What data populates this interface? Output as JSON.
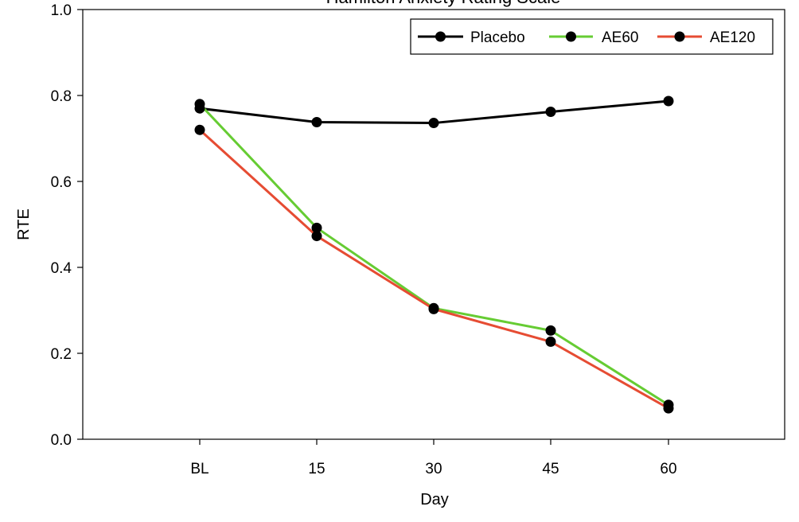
{
  "chart_data": {
    "type": "line",
    "title": "Hamilton Anxiety Rating Scale",
    "xlabel": "Day",
    "ylabel": "RTE",
    "categories": [
      "BL",
      "15",
      "30",
      "45",
      "60"
    ],
    "ylim": [
      0,
      1.0
    ],
    "yticks": [
      "0.0",
      "0.2",
      "0.4",
      "0.6",
      "0.8",
      "1.0"
    ],
    "legend_position": "top-right",
    "series": [
      {
        "name": "Placebo",
        "color": "#000000",
        "values": [
          0.77,
          0.738,
          0.736,
          0.762,
          0.787
        ]
      },
      {
        "name": "AE60",
        "color": "#66cc33",
        "values": [
          0.78,
          0.492,
          0.305,
          0.253,
          0.08
        ]
      },
      {
        "name": "AE120",
        "color": "#e64c33",
        "values": [
          0.72,
          0.473,
          0.303,
          0.227,
          0.072
        ]
      }
    ]
  }
}
